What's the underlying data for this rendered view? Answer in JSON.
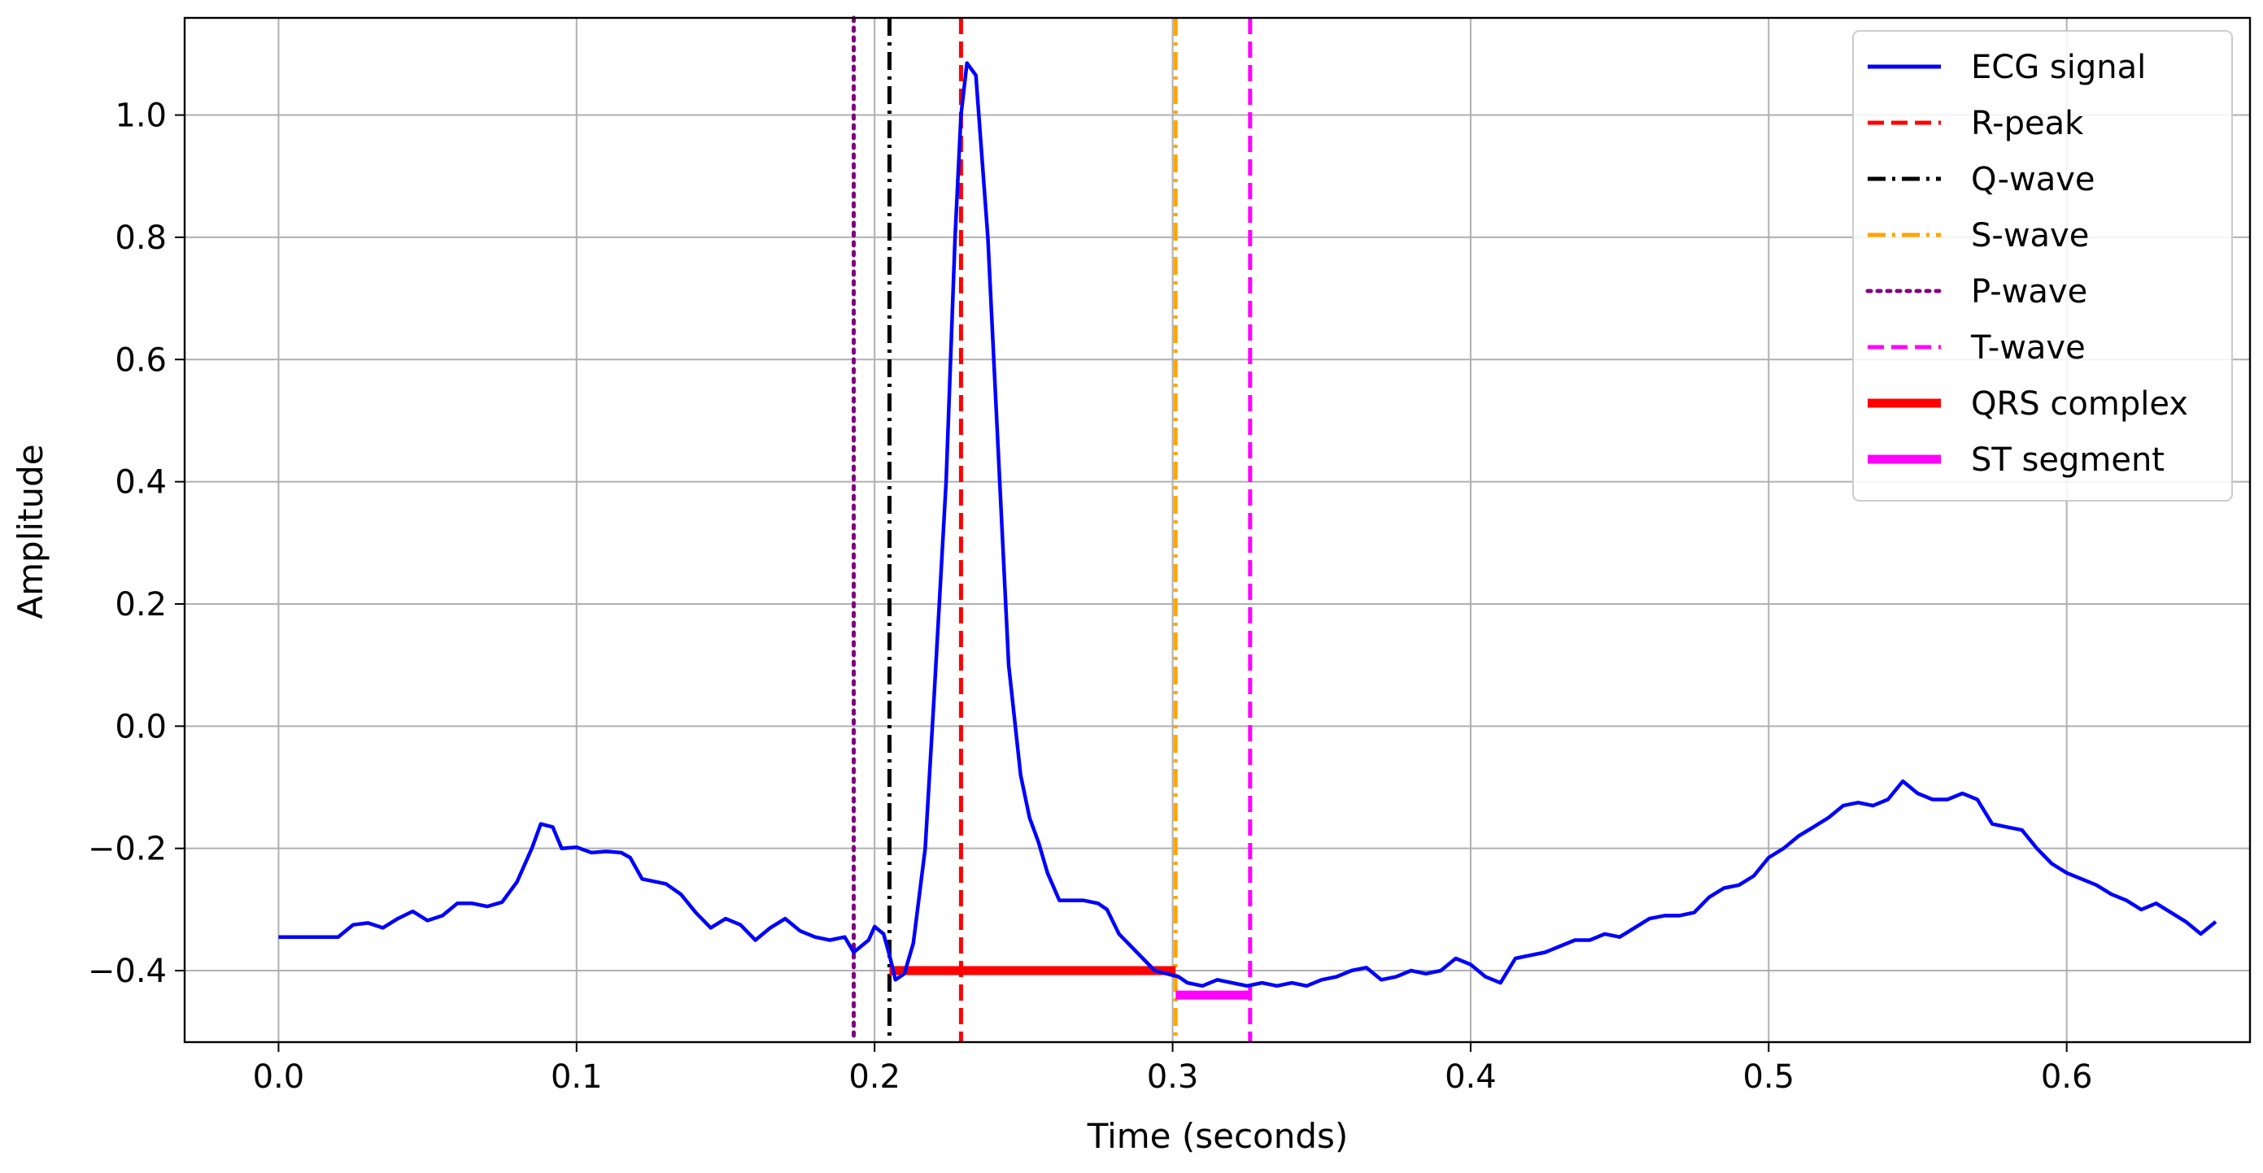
{
  "chart_data": {
    "type": "line",
    "title": "",
    "xlabel": "Time (seconds)",
    "ylabel": "Amplitude",
    "xlim": [
      -0.0315,
      0.6615
    ],
    "ylim": [
      -0.517,
      1.159
    ],
    "x_ticks": [
      0.0,
      0.1,
      0.2,
      0.3,
      0.4,
      0.5,
      0.6
    ],
    "x_tick_labels": [
      "0.0",
      "0.1",
      "0.2",
      "0.3",
      "0.4",
      "0.5",
      "0.6"
    ],
    "y_ticks": [
      -0.4,
      -0.2,
      0.0,
      0.2,
      0.4,
      0.6,
      0.8,
      1.0
    ],
    "y_tick_labels": [
      "−0.4",
      "−0.2",
      "0.0",
      "0.2",
      "0.4",
      "0.6",
      "0.8",
      "1.0"
    ],
    "grid": true,
    "legend_position": "top-right",
    "series": [
      {
        "name": "ECG signal",
        "color": "#0000ff",
        "style": "solid",
        "points": [
          [
            0.0,
            -0.345
          ],
          [
            0.01,
            -0.345
          ],
          [
            0.02,
            -0.345
          ],
          [
            0.025,
            -0.325
          ],
          [
            0.03,
            -0.322
          ],
          [
            0.035,
            -0.33
          ],
          [
            0.04,
            -0.315
          ],
          [
            0.045,
            -0.303
          ],
          [
            0.05,
            -0.318
          ],
          [
            0.055,
            -0.31
          ],
          [
            0.06,
            -0.29
          ],
          [
            0.065,
            -0.29
          ],
          [
            0.07,
            -0.295
          ],
          [
            0.075,
            -0.288
          ],
          [
            0.08,
            -0.255
          ],
          [
            0.085,
            -0.2
          ],
          [
            0.088,
            -0.16
          ],
          [
            0.092,
            -0.165
          ],
          [
            0.095,
            -0.2
          ],
          [
            0.1,
            -0.198
          ],
          [
            0.105,
            -0.207
          ],
          [
            0.11,
            -0.205
          ],
          [
            0.115,
            -0.207
          ],
          [
            0.118,
            -0.215
          ],
          [
            0.122,
            -0.25
          ],
          [
            0.13,
            -0.258
          ],
          [
            0.135,
            -0.275
          ],
          [
            0.14,
            -0.305
          ],
          [
            0.145,
            -0.33
          ],
          [
            0.15,
            -0.315
          ],
          [
            0.155,
            -0.325
          ],
          [
            0.16,
            -0.35
          ],
          [
            0.165,
            -0.33
          ],
          [
            0.17,
            -0.315
          ],
          [
            0.175,
            -0.335
          ],
          [
            0.18,
            -0.345
          ],
          [
            0.185,
            -0.35
          ],
          [
            0.19,
            -0.345
          ],
          [
            0.193,
            -0.37
          ],
          [
            0.198,
            -0.35
          ],
          [
            0.2,
            -0.328
          ],
          [
            0.203,
            -0.34
          ],
          [
            0.205,
            -0.375
          ],
          [
            0.207,
            -0.415
          ],
          [
            0.21,
            -0.405
          ],
          [
            0.213,
            -0.355
          ],
          [
            0.217,
            -0.2
          ],
          [
            0.22,
            0.05
          ],
          [
            0.224,
            0.4
          ],
          [
            0.227,
            0.8
          ],
          [
            0.229,
            1.0
          ],
          [
            0.231,
            1.085
          ],
          [
            0.234,
            1.065
          ],
          [
            0.238,
            0.8
          ],
          [
            0.242,
            0.4
          ],
          [
            0.245,
            0.1
          ],
          [
            0.249,
            -0.08
          ],
          [
            0.252,
            -0.15
          ],
          [
            0.255,
            -0.19
          ],
          [
            0.258,
            -0.24
          ],
          [
            0.262,
            -0.285
          ],
          [
            0.27,
            -0.285
          ],
          [
            0.275,
            -0.29
          ],
          [
            0.278,
            -0.3
          ],
          [
            0.282,
            -0.34
          ],
          [
            0.286,
            -0.36
          ],
          [
            0.29,
            -0.38
          ],
          [
            0.294,
            -0.4
          ],
          [
            0.298,
            -0.405
          ],
          [
            0.302,
            -0.41
          ],
          [
            0.305,
            -0.42
          ],
          [
            0.31,
            -0.425
          ],
          [
            0.315,
            -0.415
          ],
          [
            0.32,
            -0.42
          ],
          [
            0.325,
            -0.425
          ],
          [
            0.33,
            -0.42
          ],
          [
            0.335,
            -0.425
          ],
          [
            0.34,
            -0.42
          ],
          [
            0.345,
            -0.425
          ],
          [
            0.35,
            -0.415
          ],
          [
            0.355,
            -0.41
          ],
          [
            0.36,
            -0.4
          ],
          [
            0.365,
            -0.395
          ],
          [
            0.37,
            -0.415
          ],
          [
            0.375,
            -0.41
          ],
          [
            0.38,
            -0.4
          ],
          [
            0.385,
            -0.405
          ],
          [
            0.39,
            -0.4
          ],
          [
            0.395,
            -0.38
          ],
          [
            0.4,
            -0.39
          ],
          [
            0.405,
            -0.41
          ],
          [
            0.41,
            -0.42
          ],
          [
            0.415,
            -0.38
          ],
          [
            0.42,
            -0.375
          ],
          [
            0.425,
            -0.37
          ],
          [
            0.43,
            -0.36
          ],
          [
            0.435,
            -0.35
          ],
          [
            0.44,
            -0.35
          ],
          [
            0.445,
            -0.34
          ],
          [
            0.45,
            -0.345
          ],
          [
            0.455,
            -0.33
          ],
          [
            0.46,
            -0.315
          ],
          [
            0.465,
            -0.31
          ],
          [
            0.47,
            -0.31
          ],
          [
            0.475,
            -0.305
          ],
          [
            0.48,
            -0.28
          ],
          [
            0.485,
            -0.265
          ],
          [
            0.49,
            -0.26
          ],
          [
            0.495,
            -0.245
          ],
          [
            0.5,
            -0.215
          ],
          [
            0.505,
            -0.2
          ],
          [
            0.51,
            -0.18
          ],
          [
            0.515,
            -0.165
          ],
          [
            0.52,
            -0.15
          ],
          [
            0.525,
            -0.13
          ],
          [
            0.53,
            -0.125
          ],
          [
            0.535,
            -0.13
          ],
          [
            0.54,
            -0.12
          ],
          [
            0.545,
            -0.09
          ],
          [
            0.55,
            -0.11
          ],
          [
            0.555,
            -0.12
          ],
          [
            0.56,
            -0.12
          ],
          [
            0.565,
            -0.11
          ],
          [
            0.57,
            -0.12
          ],
          [
            0.575,
            -0.16
          ],
          [
            0.58,
            -0.165
          ],
          [
            0.585,
            -0.17
          ],
          [
            0.59,
            -0.2
          ],
          [
            0.595,
            -0.225
          ],
          [
            0.6,
            -0.24
          ],
          [
            0.605,
            -0.25
          ],
          [
            0.61,
            -0.26
          ],
          [
            0.615,
            -0.275
          ],
          [
            0.62,
            -0.285
          ],
          [
            0.625,
            -0.3
          ],
          [
            0.63,
            -0.29
          ],
          [
            0.635,
            -0.305
          ],
          [
            0.64,
            -0.32
          ],
          [
            0.645,
            -0.34
          ],
          [
            0.65,
            -0.32
          ]
        ]
      }
    ],
    "markers": [
      {
        "name": "R-peak",
        "x": 0.229,
        "color": "#ff0000",
        "style": "dashed"
      },
      {
        "name": "Q-wave",
        "x": 0.205,
        "color": "#000000",
        "style": "dashdot"
      },
      {
        "name": "S-wave",
        "x": 0.301,
        "color": "#ffa500",
        "style": "dashdot"
      },
      {
        "name": "P-wave",
        "x": 0.193,
        "color": "#800080",
        "style": "dotted"
      },
      {
        "name": "T-wave",
        "x": 0.326,
        "color": "#ff00ff",
        "style": "dashed"
      }
    ],
    "segments": [
      {
        "name": "QRS complex",
        "x_start": 0.205,
        "x_end": 0.301,
        "y": -0.4,
        "color": "#ff0000"
      },
      {
        "name": "ST segment",
        "x_start": 0.301,
        "x_end": 0.326,
        "y": -0.44,
        "color": "#ff00ff"
      }
    ],
    "legend": [
      {
        "label": "ECG signal",
        "color": "#0000ff",
        "style": "solid"
      },
      {
        "label": "R-peak",
        "color": "#ff0000",
        "style": "dashed"
      },
      {
        "label": "Q-wave",
        "color": "#000000",
        "style": "dashdot"
      },
      {
        "label": "S-wave",
        "color": "#ffa500",
        "style": "dashdot"
      },
      {
        "label": "P-wave",
        "color": "#800080",
        "style": "dotted"
      },
      {
        "label": "T-wave",
        "color": "#ff00ff",
        "style": "dashed"
      },
      {
        "label": "QRS complex",
        "color": "#ff0000",
        "style": "thick"
      },
      {
        "label": "ST segment",
        "color": "#ff00ff",
        "style": "thick"
      }
    ]
  }
}
